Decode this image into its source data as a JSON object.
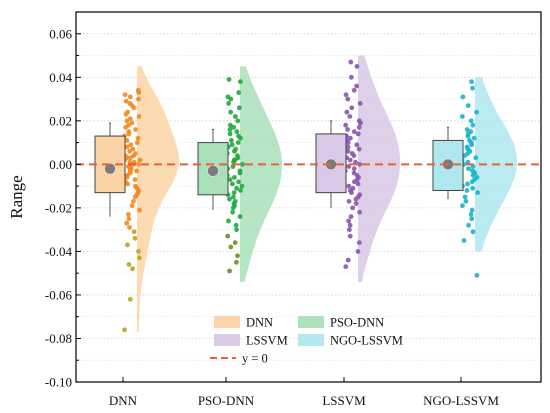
{
  "chart_data": {
    "type": "box",
    "ylabel": "Range",
    "xlabel": "",
    "ylim": [
      -0.1,
      0.07
    ],
    "yticks": [
      "0.06",
      "0.04",
      "0.02",
      "0.00",
      "-0.02",
      "-0.04",
      "-0.06",
      "-0.08",
      "-0.10"
    ],
    "categories": [
      "DNN",
      "PSO-DNN",
      "LSSVM",
      "NGO-LSSVM"
    ],
    "grid": true,
    "legend_position": "bottom-center",
    "reference_line": {
      "name": "y = 0",
      "value": 0.0,
      "color": "#e8603c"
    },
    "series": [
      {
        "name": "DNN",
        "fill": "#fbd3a4",
        "box_edge": "#444444",
        "point_color": "#f28a1c",
        "lower_point_color": "#b9a326",
        "box": {
          "whisker_low": -0.024,
          "q1": -0.013,
          "median": 0.001,
          "q3": 0.013,
          "whisker_high": 0.019
        },
        "mean": -0.002,
        "density_extent": [
          -0.077,
          0.045
        ],
        "points": [
          0.034,
          0.033,
          0.032,
          0.031,
          0.03,
          0.029,
          0.028,
          0.027,
          0.026,
          0.024,
          0.023,
          0.022,
          0.021,
          0.02,
          0.019,
          0.018,
          0.017,
          0.016,
          0.015,
          0.014,
          0.013,
          0.012,
          0.011,
          0.01,
          0.009,
          0.008,
          0.007,
          0.006,
          0.005,
          0.004,
          0.004,
          0.003,
          0.003,
          0.002,
          0.002,
          0.001,
          0.001,
          0.0,
          0.0,
          -0.001,
          -0.001,
          -0.002,
          -0.002,
          -0.003,
          -0.003,
          -0.004,
          -0.005,
          -0.006,
          -0.007,
          -0.008,
          -0.009,
          -0.01,
          -0.011,
          -0.012,
          -0.013,
          -0.014,
          -0.015,
          -0.017,
          -0.019,
          -0.021,
          -0.023,
          -0.025,
          -0.027,
          -0.029,
          -0.031,
          -0.034,
          -0.037,
          -0.04,
          -0.043,
          -0.046,
          -0.048,
          -0.062,
          -0.076
        ]
      },
      {
        "name": "PSO-DNN",
        "fill": "#a9e0b9",
        "box_edge": "#444444",
        "point_color": "#1faa3c",
        "lower_point_color": "#6b8e23",
        "box": {
          "whisker_low": -0.021,
          "q1": -0.014,
          "median": 0.003,
          "q3": 0.01,
          "whisker_high": 0.016
        },
        "mean": -0.003,
        "density_extent": [
          -0.054,
          0.045
        ],
        "points": [
          0.039,
          0.038,
          0.033,
          0.031,
          0.03,
          0.028,
          0.026,
          0.024,
          0.022,
          0.02,
          0.018,
          0.017,
          0.016,
          0.015,
          0.014,
          0.013,
          0.012,
          0.011,
          0.01,
          0.009,
          0.008,
          0.007,
          0.006,
          0.005,
          0.004,
          0.003,
          0.002,
          0.002,
          0.001,
          0.0,
          -0.001,
          -0.002,
          -0.003,
          -0.004,
          -0.005,
          -0.006,
          -0.007,
          -0.008,
          -0.009,
          -0.01,
          -0.011,
          -0.012,
          -0.013,
          -0.014,
          -0.015,
          -0.016,
          -0.017,
          -0.018,
          -0.019,
          -0.02,
          -0.022,
          -0.024,
          -0.026,
          -0.028,
          -0.03,
          -0.033,
          -0.036,
          -0.038,
          -0.042,
          -0.045,
          -0.049
        ]
      },
      {
        "name": "LSSVM",
        "fill": "#d9c8e6",
        "box_edge": "#444444",
        "point_color": "#8a55b0",
        "lower_point_color": "#8a55b0",
        "box": {
          "whisker_low": -0.02,
          "q1": -0.013,
          "median": 0.0,
          "q3": 0.014,
          "whisker_high": 0.02
        },
        "mean": 0.0,
        "density_extent": [
          -0.054,
          0.05
        ],
        "points": [
          0.047,
          0.045,
          0.04,
          0.036,
          0.034,
          0.032,
          0.03,
          0.028,
          0.026,
          0.024,
          0.022,
          0.02,
          0.019,
          0.018,
          0.017,
          0.016,
          0.015,
          0.014,
          0.013,
          0.012,
          0.011,
          0.01,
          0.009,
          0.008,
          0.007,
          0.006,
          0.005,
          0.004,
          0.003,
          0.002,
          0.001,
          0.0,
          -0.001,
          -0.002,
          -0.003,
          -0.004,
          -0.005,
          -0.006,
          -0.007,
          -0.008,
          -0.009,
          -0.01,
          -0.011,
          -0.012,
          -0.013,
          -0.014,
          -0.015,
          -0.016,
          -0.017,
          -0.018,
          -0.02,
          -0.022,
          -0.024,
          -0.026,
          -0.028,
          -0.03,
          -0.033,
          -0.036,
          -0.04,
          -0.044,
          -0.047
        ]
      },
      {
        "name": "NGO-LSSVM",
        "fill": "#aee8ee",
        "box_edge": "#444444",
        "point_color": "#17b4cc",
        "lower_point_color": "#17b4cc",
        "box": {
          "whisker_low": -0.016,
          "q1": -0.012,
          "median": 0.0,
          "q3": 0.011,
          "whisker_high": 0.017
        },
        "mean": 0.0,
        "density_extent": [
          -0.04,
          0.04
        ],
        "points": [
          0.038,
          0.035,
          0.031,
          0.027,
          0.024,
          0.022,
          0.02,
          0.018,
          0.016,
          0.015,
          0.014,
          0.013,
          0.012,
          0.011,
          0.01,
          0.009,
          0.008,
          0.007,
          0.006,
          0.005,
          0.004,
          0.003,
          0.002,
          0.001,
          0.0,
          -0.001,
          -0.002,
          -0.003,
          -0.004,
          -0.005,
          -0.006,
          -0.007,
          -0.008,
          -0.009,
          -0.01,
          -0.011,
          -0.012,
          -0.013,
          -0.015,
          -0.017,
          -0.019,
          -0.021,
          -0.023,
          -0.025,
          -0.028,
          -0.031,
          -0.035,
          -0.051
        ]
      }
    ]
  }
}
